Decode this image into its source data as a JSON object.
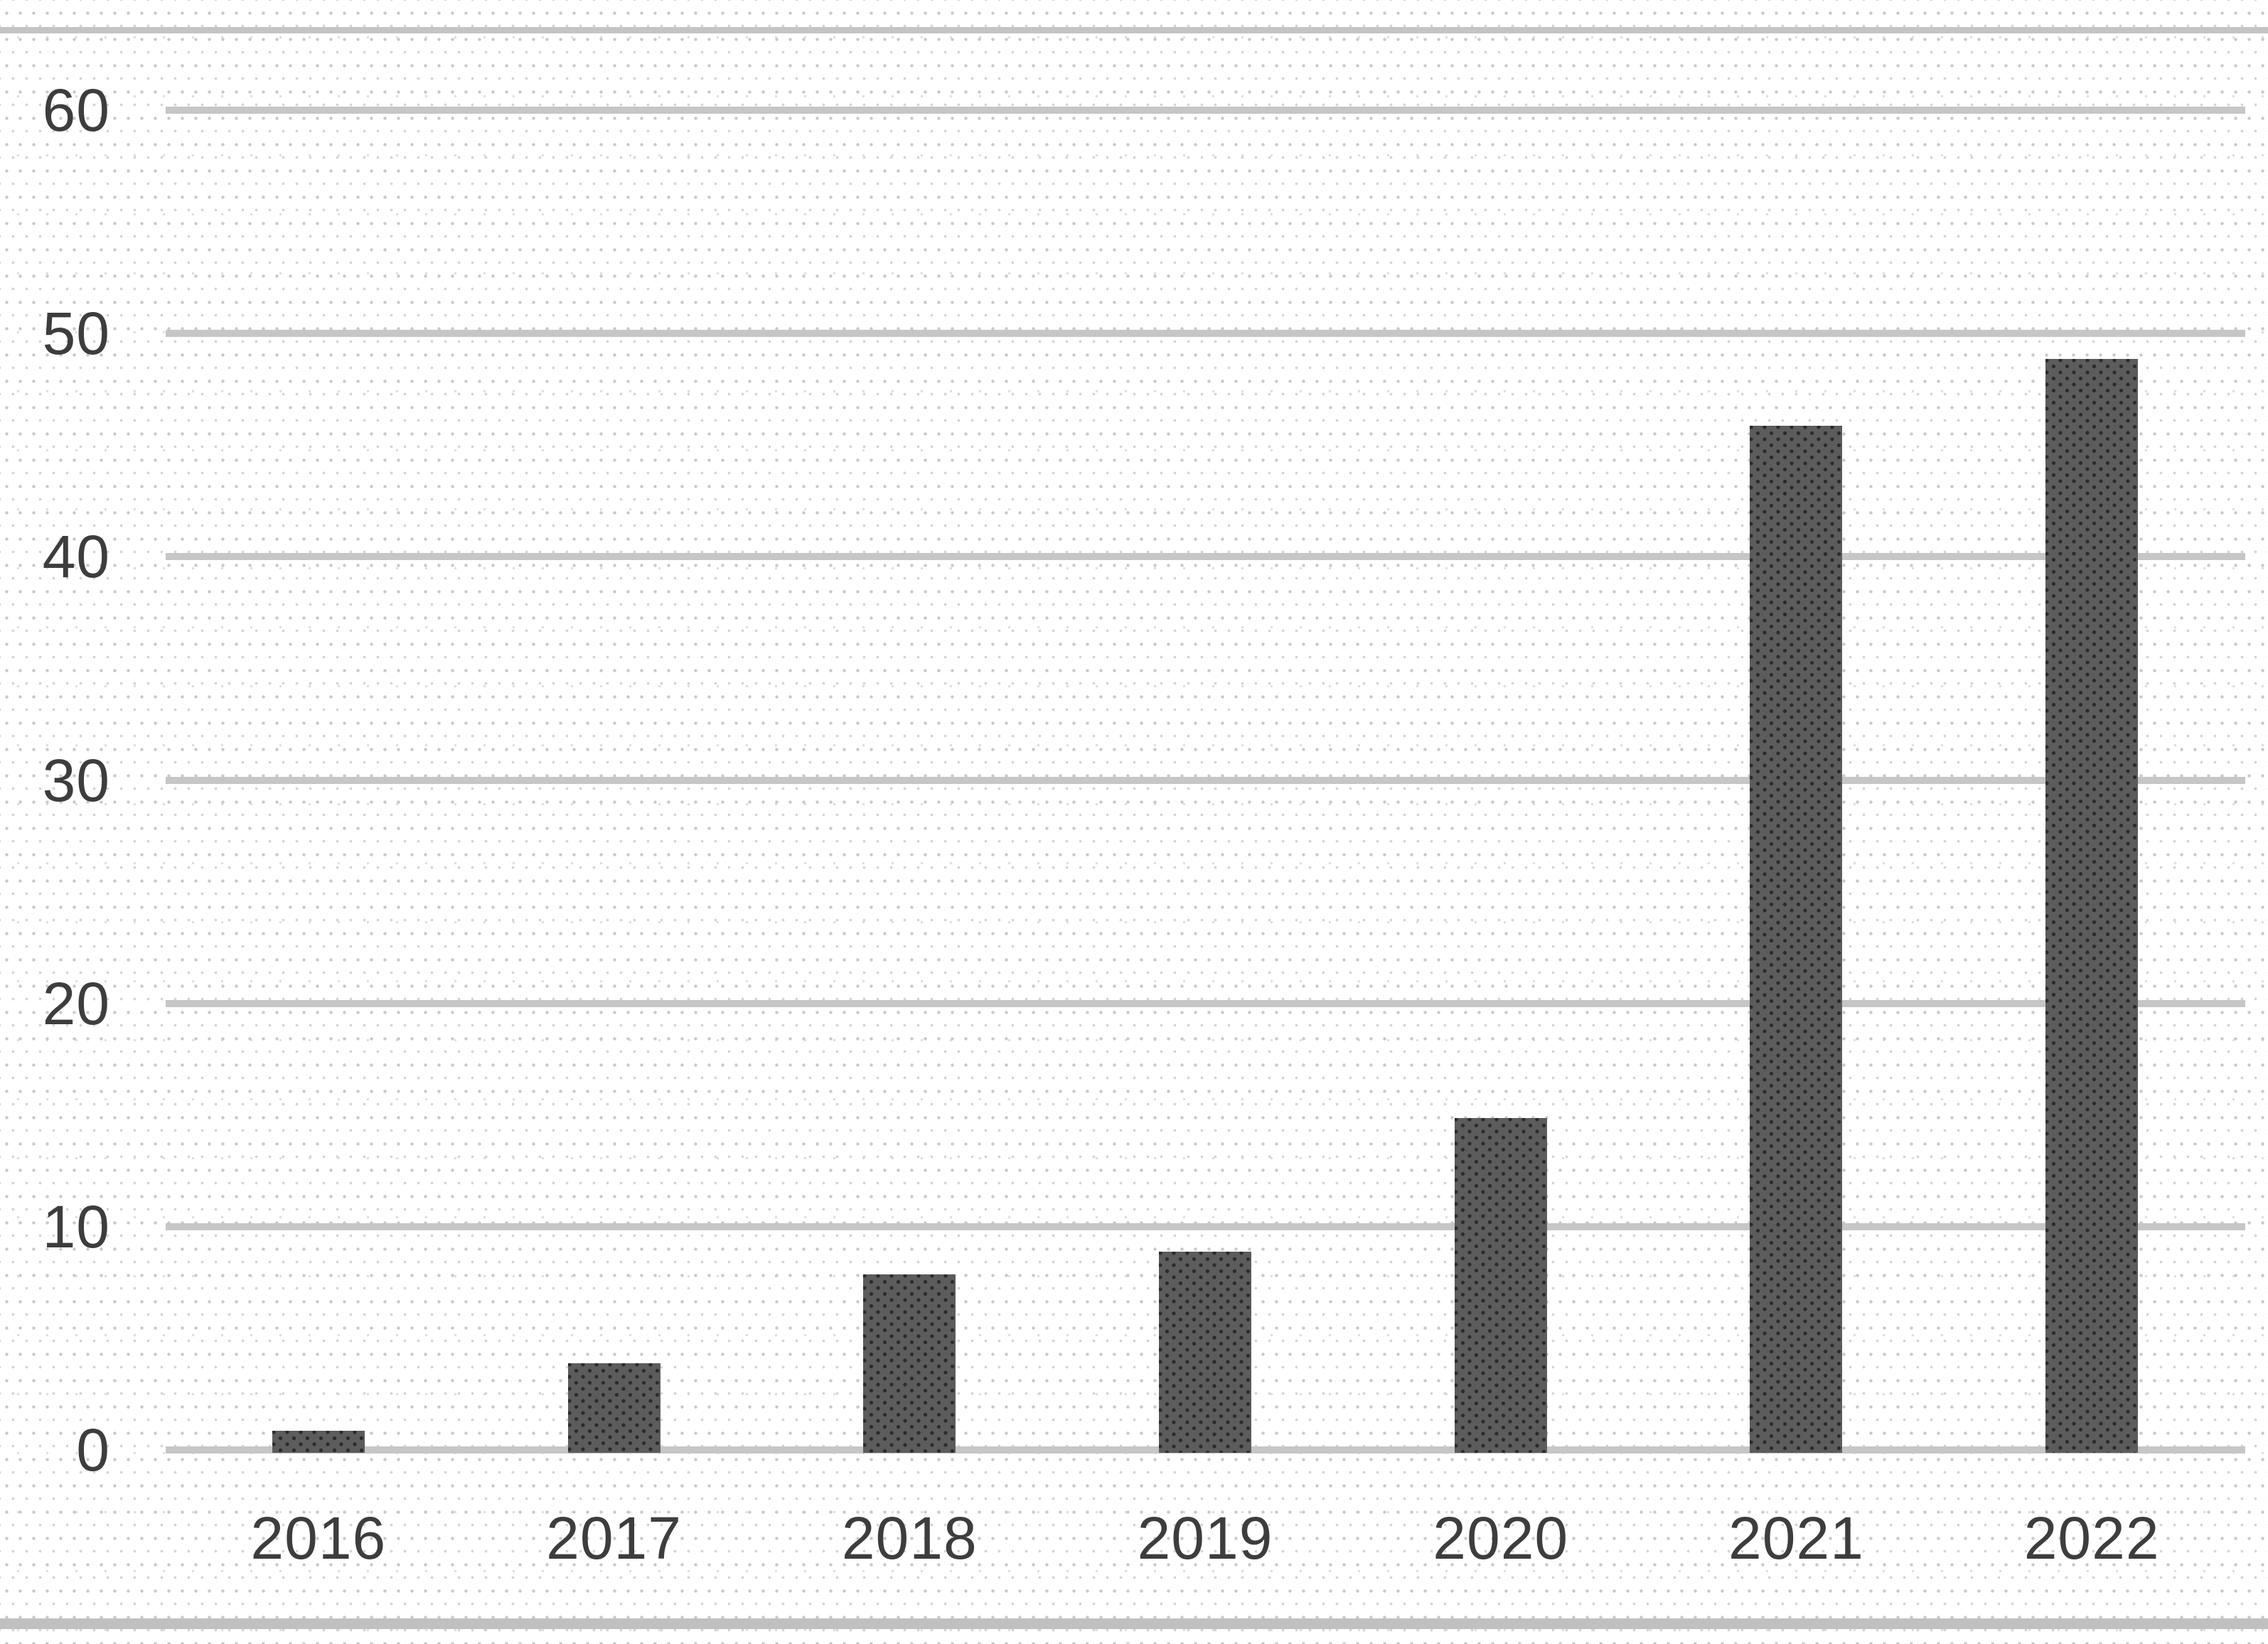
{
  "chart_data": {
    "type": "bar",
    "title": "",
    "xlabel": "",
    "ylabel": "",
    "categories": [
      "2016",
      "2017",
      "2018",
      "2019",
      "2020",
      "2021",
      "2022"
    ],
    "values": [
      1,
      4,
      8,
      9,
      15,
      46,
      49
    ],
    "ylim": [
      0,
      60
    ],
    "yticks": [
      0,
      10,
      20,
      30,
      40,
      50,
      60
    ],
    "grid": true,
    "legend": false,
    "colors": {
      "bar_fill": "#5c5c5c",
      "bar_dot_pattern": "#2b2b2b",
      "gridline": "#c6c6c6",
      "axis_text": "#3d3d3d",
      "top_border": "#c4c4c4",
      "bottom_border": "#c0c0c0",
      "background": "#ffffff",
      "background_dot_texture": "#c9c9c9"
    }
  }
}
